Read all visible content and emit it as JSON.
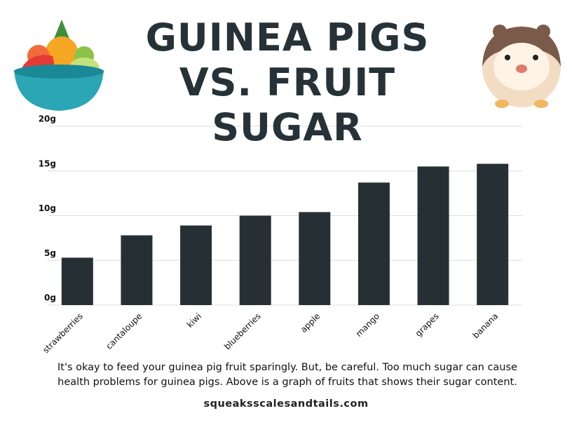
{
  "chart_data": {
    "type": "bar",
    "title": "GUINEA PIGS VS. FRUIT SUGAR",
    "categories": [
      "strawberries",
      "cantaloupe",
      "kiwi",
      "blueberries",
      "apple",
      "mango",
      "grapes",
      "banana"
    ],
    "values": [
      5.3,
      7.8,
      8.9,
      10,
      10.4,
      13.7,
      15.5,
      15.8
    ],
    "color": "#263034",
    "ylim": [
      0,
      20
    ],
    "yticks": [
      {
        "value": 0,
        "label": "0g"
      },
      {
        "value": 5,
        "label": "5g"
      },
      {
        "value": 10,
        "label": "10g"
      },
      {
        "value": 15,
        "label": "15g"
      },
      {
        "value": 20,
        "label": "20g"
      }
    ],
    "grid": true,
    "caption": "It's okay to feed your guinea pig fruit sparingly.  But, be careful.  Too much sugar can cause health problems for guinea pigs.  Above is a graph of fruits that shows their sugar content.",
    "source": "squeaksscalesandtails.com"
  }
}
